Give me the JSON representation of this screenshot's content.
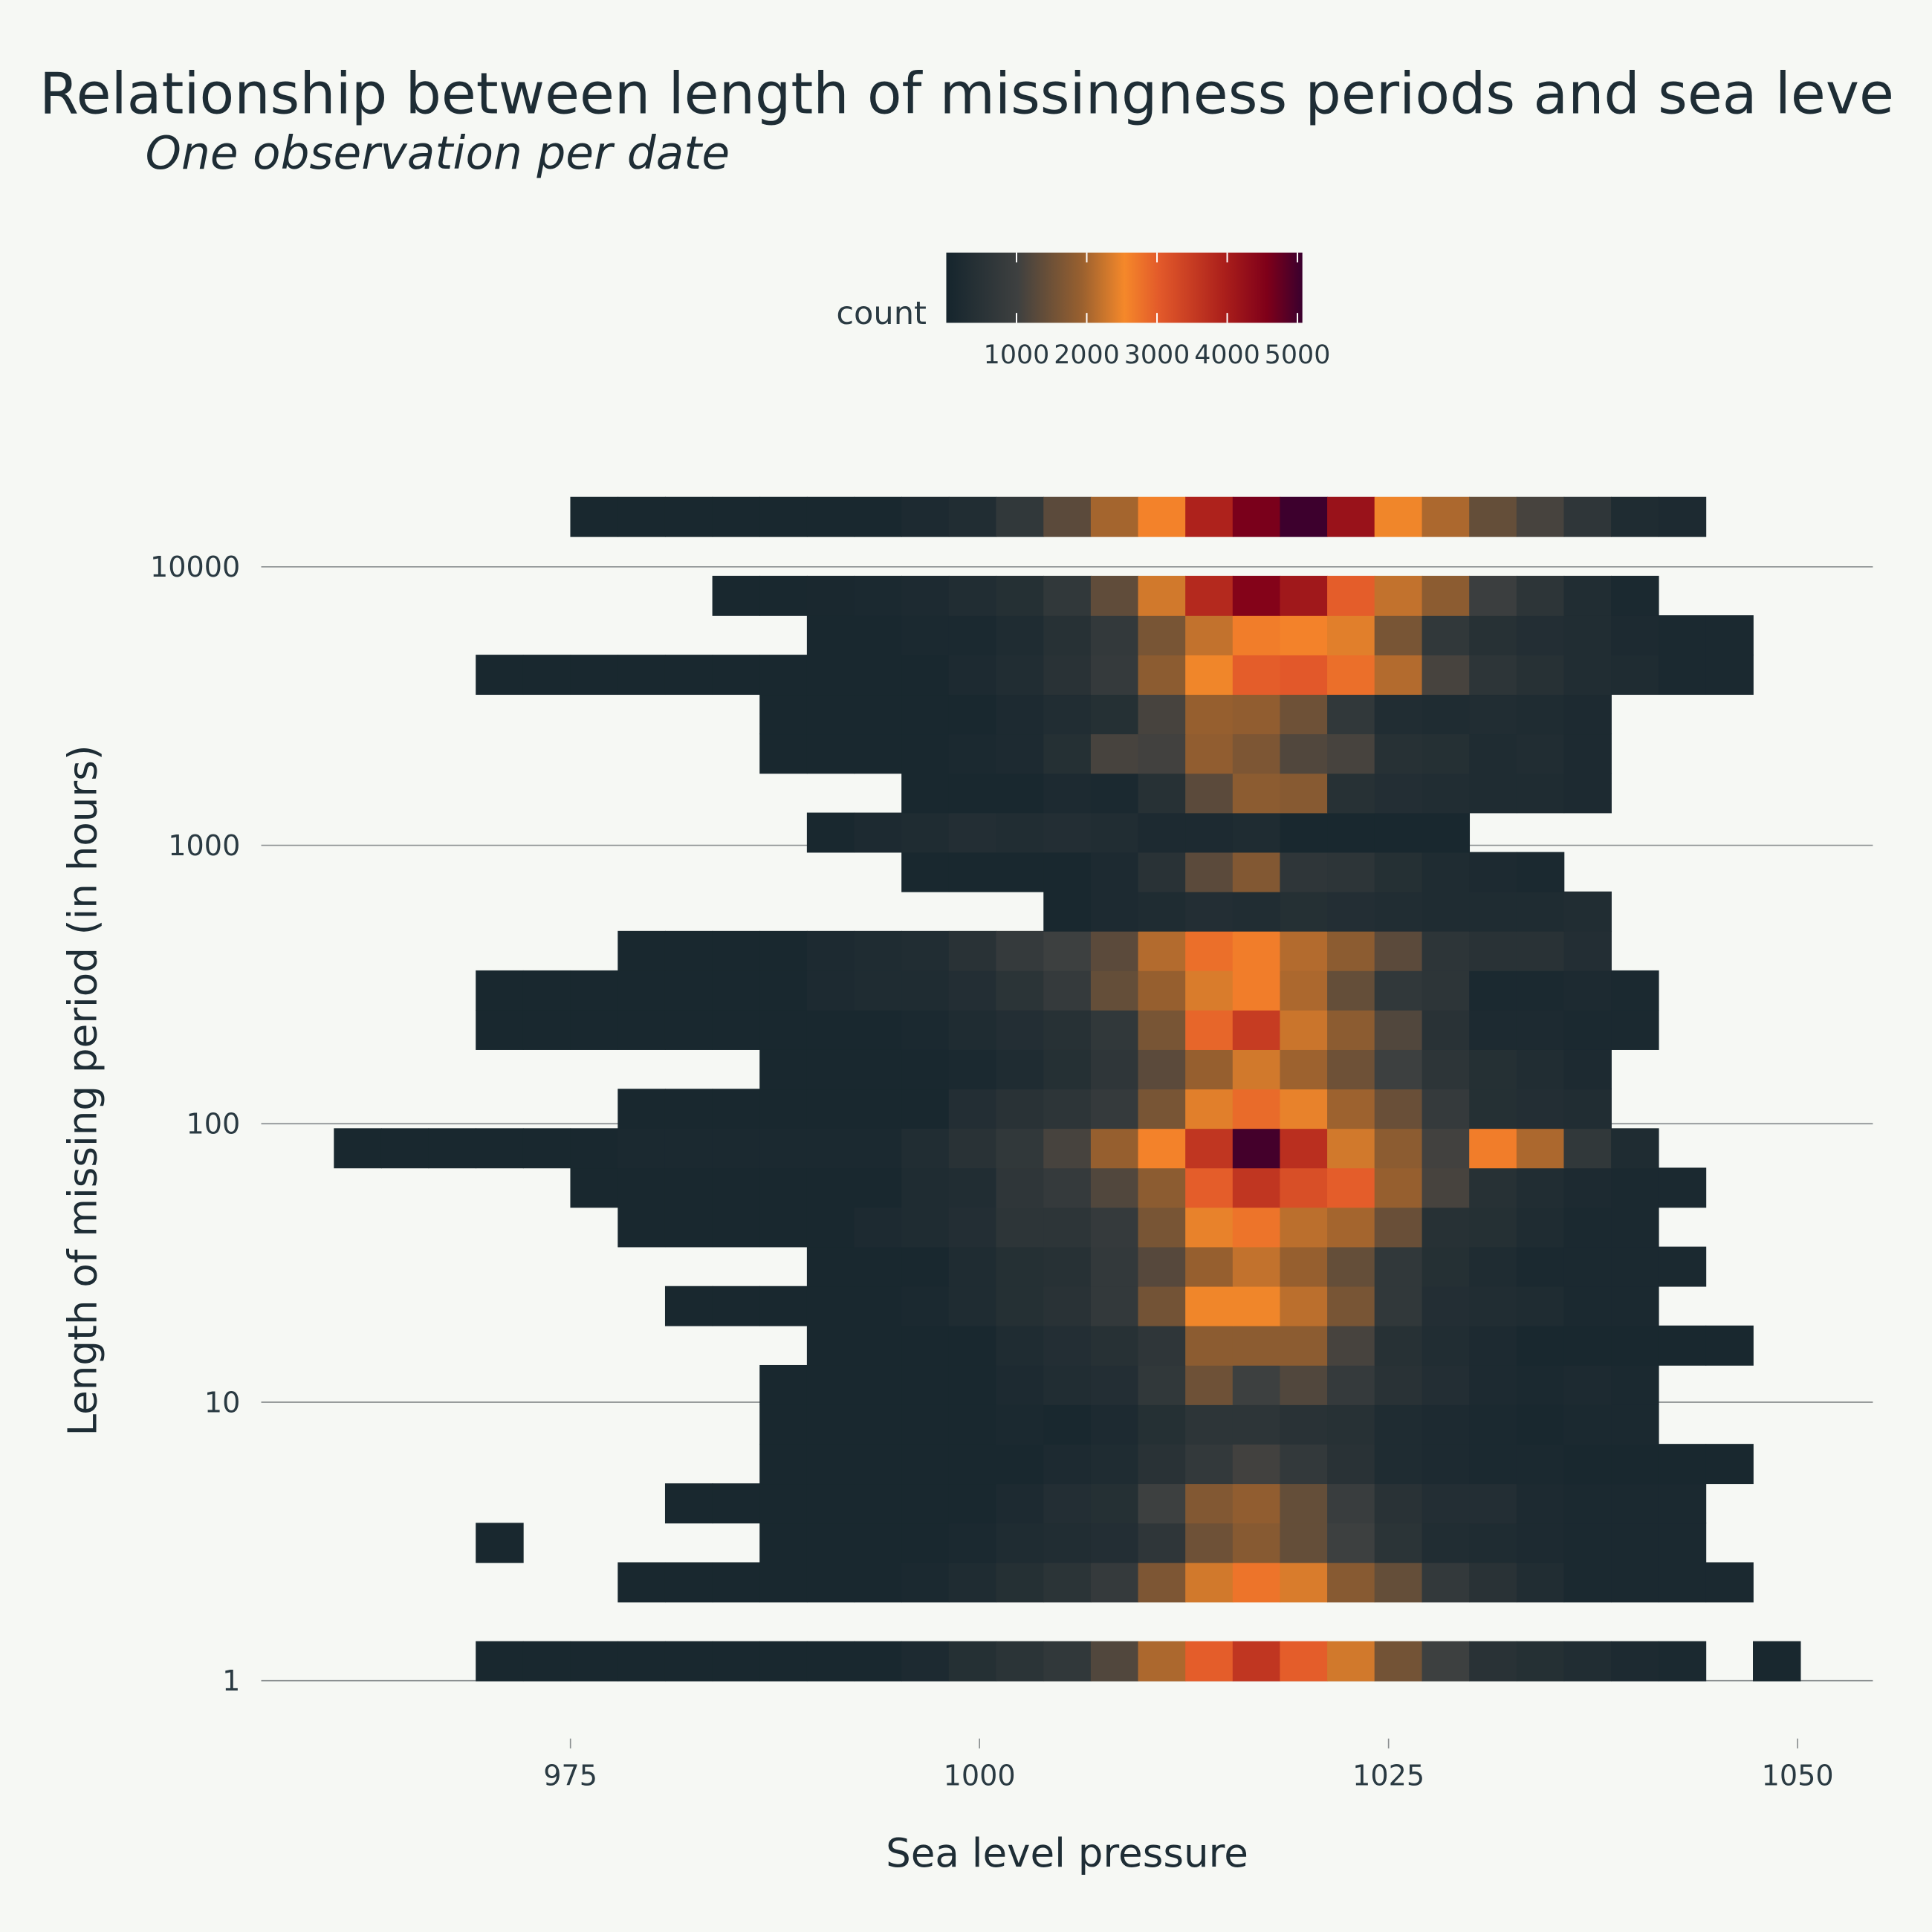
{
  "chart_data": {
    "type": "heatmap",
    "title": "Relationship between length of missingness periods and sea leve",
    "subtitle": "One observation per date",
    "x_label": "Sea level pressure",
    "y_label": "Length of missing period (in hours)",
    "xlim": [
      956.1,
      1054.6
    ],
    "xticks": [
      975,
      1000,
      1025,
      1050
    ],
    "ylim": [
      0.7293,
      23776
    ],
    "yticks": [
      1,
      10,
      100,
      1000,
      10000
    ],
    "ylog": true,
    "grid": true,
    "xbins": [
      960.54,
      963.43,
      966.32,
      969.21,
      972.1,
      974.99,
      977.89,
      980.78,
      983.67,
      986.56,
      989.45,
      992.34,
      995.23,
      998.12,
      1001.01,
      1003.91,
      1006.8,
      1009.69,
      1012.58,
      1015.47,
      1018.36,
      1021.25,
      1024.14,
      1027.04,
      1029.93,
      1032.82,
      1035.71,
      1038.6,
      1041.49,
      1044.38,
      1047.27,
      1050.16
    ],
    "ybins": [
      1,
      1.386,
      1.92,
      2.661,
      3.688,
      5.111,
      7.083,
      9.815,
      13.6,
      18.85,
      26.12,
      36.2,
      50.17,
      69.52,
      96.34,
      133.5,
      185.0,
      256.4,
      355.3,
      492.4,
      682.4,
      945.6,
      1310,
      1816,
      2517,
      3488,
      4833,
      6698,
      9282,
      12862,
      17824
    ],
    "zlim": [
      0,
      5070
    ],
    "colorbar": {
      "title": "count",
      "ticks": [
        1000,
        2000,
        3000,
        4000,
        5000
      ],
      "colorscale": [
        [
          0,
          "#15252d"
        ],
        [
          0.2,
          "#3e4040"
        ],
        [
          0.38,
          "#99602f"
        ],
        [
          0.5,
          "#f5882a"
        ],
        [
          0.6,
          "#e2592a"
        ],
        [
          0.78,
          "#ab1f1b"
        ],
        [
          0.9,
          "#7f0019"
        ],
        [
          1,
          "#3a002e"
        ]
      ]
    },
    "z": [
      [
        null,
        null,
        null,
        100,
        100,
        100,
        100,
        100,
        100,
        100,
        100,
        100,
        200,
        400,
        550,
        700,
        1200,
        2050,
        3000,
        3600,
        3000,
        2300,
        1550,
        1000,
        500,
        400,
        300,
        200,
        150,
        null,
        100
      ],
      [
        null,
        null,
        null,
        null,
        null,
        null,
        null,
        null,
        null,
        null,
        null,
        null,
        null,
        null,
        null,
        null,
        null,
        null,
        null,
        null,
        null,
        null,
        null,
        null,
        null,
        null,
        null,
        null,
        null,
        null,
        null
      ],
      [
        null,
        null,
        null,
        null,
        null,
        null,
        100,
        100,
        100,
        100,
        100,
        100,
        150,
        250,
        400,
        550,
        800,
        1650,
        2300,
        2750,
        2350,
        1750,
        1400,
        750,
        500,
        300,
        150,
        150,
        150,
        150,
        null
      ],
      [
        null,
        null,
        null,
        100,
        null,
        null,
        null,
        null,
        null,
        100,
        100,
        100,
        100,
        150,
        250,
        300,
        350,
        650,
        1500,
        1750,
        1400,
        1000,
        550,
        300,
        250,
        200,
        150,
        150,
        150,
        null,
        null
      ],
      [
        null,
        null,
        null,
        null,
        null,
        null,
        null,
        100,
        100,
        100,
        100,
        100,
        100,
        100,
        200,
        350,
        400,
        1000,
        1700,
        1850,
        1400,
        900,
        500,
        350,
        350,
        200,
        150,
        150,
        150,
        null,
        null
      ],
      [
        null,
        null,
        null,
        null,
        null,
        null,
        null,
        null,
        null,
        100,
        100,
        100,
        100,
        100,
        100,
        200,
        250,
        500,
        750,
        1050,
        750,
        500,
        250,
        200,
        150,
        150,
        100,
        100,
        100,
        100,
        null
      ],
      [
        null,
        null,
        null,
        null,
        null,
        null,
        null,
        null,
        null,
        100,
        100,
        100,
        100,
        100,
        150,
        100,
        200,
        400,
        600,
        600,
        500,
        450,
        250,
        200,
        150,
        100,
        150,
        150,
        null,
        null,
        null
      ],
      [
        null,
        null,
        null,
        null,
        null,
        null,
        null,
        null,
        null,
        100,
        100,
        100,
        100,
        100,
        200,
        300,
        350,
        700,
        1500,
        1000,
        1200,
        800,
        500,
        350,
        200,
        150,
        200,
        150,
        null,
        null,
        null
      ],
      [
        null,
        null,
        null,
        null,
        null,
        null,
        null,
        null,
        null,
        null,
        100,
        100,
        100,
        100,
        250,
        350,
        450,
        650,
        1800,
        1800,
        1800,
        1100,
        450,
        300,
        200,
        100,
        100,
        100,
        100,
        100,
        null
      ],
      [
        null,
        null,
        null,
        null,
        null,
        null,
        null,
        100,
        100,
        100,
        100,
        100,
        150,
        250,
        400,
        500,
        750,
        1550,
        2500,
        2500,
        2150,
        1600,
        700,
        350,
        300,
        250,
        150,
        150,
        null,
        null,
        null
      ],
      [
        null,
        null,
        null,
        null,
        null,
        null,
        null,
        null,
        null,
        null,
        100,
        100,
        100,
        250,
        400,
        450,
        750,
        1250,
        1900,
        2200,
        1900,
        1400,
        700,
        400,
        250,
        150,
        150,
        150,
        150,
        null,
        null
      ],
      [
        null,
        null,
        null,
        null,
        null,
        null,
        100,
        100,
        100,
        100,
        100,
        200,
        250,
        350,
        600,
        600,
        800,
        1600,
        2450,
        2750,
        2150,
        2000,
        1450,
        450,
        400,
        250,
        150,
        150,
        null,
        null,
        null
      ],
      [
        null,
        null,
        null,
        null,
        null,
        100,
        100,
        100,
        100,
        100,
        100,
        100,
        250,
        300,
        650,
        800,
        1200,
        1800,
        3000,
        3600,
        3200,
        3000,
        1900,
        1100,
        450,
        300,
        200,
        150,
        150,
        null,
        null
      ],
      [
        100,
        100,
        100,
        100,
        100,
        100,
        150,
        150,
        150,
        150,
        150,
        150,
        300,
        500,
        700,
        1100,
        1900,
        2600,
        3600,
        5000,
        3700,
        2300,
        1800,
        1050,
        2650,
        2050,
        700,
        250,
        null,
        null,
        null
      ],
      [
        null,
        null,
        null,
        null,
        null,
        null,
        100,
        100,
        100,
        100,
        100,
        100,
        100,
        350,
        500,
        600,
        800,
        1600,
        2400,
        2850,
        2450,
        1950,
        1450,
        800,
        400,
        350,
        300,
        null,
        null,
        null,
        null
      ],
      [
        null,
        null,
        null,
        null,
        null,
        null,
        null,
        null,
        null,
        100,
        100,
        100,
        100,
        150,
        250,
        400,
        650,
        1300,
        1900,
        2300,
        1950,
        1500,
        1000,
        600,
        400,
        300,
        200,
        null,
        null,
        null,
        null
      ],
      [
        null,
        null,
        null,
        100,
        100,
        100,
        100,
        100,
        100,
        100,
        100,
        100,
        150,
        250,
        350,
        450,
        700,
        1600,
        2900,
        3500,
        2250,
        1800,
        1200,
        500,
        200,
        200,
        150,
        150,
        null,
        null,
        null
      ],
      [
        null,
        null,
        null,
        100,
        100,
        100,
        100,
        100,
        100,
        100,
        200,
        250,
        250,
        350,
        550,
        800,
        1400,
        1900,
        2350,
        2650,
        2050,
        1400,
        700,
        600,
        150,
        150,
        200,
        150,
        null,
        null,
        null
      ],
      [
        null,
        null,
        null,
        null,
        null,
        null,
        100,
        100,
        100,
        100,
        200,
        250,
        300,
        500,
        800,
        1000,
        1300,
        2100,
        2800,
        2650,
        2100,
        1800,
        1300,
        600,
        500,
        500,
        350,
        null,
        null,
        null,
        null
      ],
      [
        null,
        null,
        null,
        null,
        null,
        null,
        null,
        null,
        null,
        null,
        null,
        null,
        null,
        null,
        null,
        100,
        200,
        250,
        350,
        300,
        400,
        350,
        300,
        250,
        250,
        250,
        300,
        null,
        null,
        null,
        null
      ],
      [
        null,
        null,
        null,
        null,
        null,
        null,
        null,
        null,
        null,
        null,
        null,
        null,
        100,
        100,
        100,
        100,
        200,
        500,
        1300,
        1700,
        650,
        600,
        400,
        250,
        200,
        150,
        null,
        null,
        null,
        null,
        null
      ],
      [
        null,
        null,
        null,
        null,
        null,
        null,
        null,
        null,
        null,
        null,
        100,
        200,
        250,
        350,
        300,
        350,
        300,
        200,
        200,
        250,
        100,
        100,
        100,
        100,
        null,
        null,
        null,
        null,
        null,
        null,
        null
      ],
      [
        null,
        null,
        null,
        null,
        null,
        null,
        null,
        null,
        null,
        null,
        null,
        null,
        100,
        100,
        100,
        200,
        150,
        450,
        1300,
        1800,
        1750,
        450,
        350,
        300,
        250,
        250,
        200,
        null,
        null,
        null,
        null
      ],
      [
        null,
        null,
        null,
        null,
        null,
        null,
        null,
        null,
        null,
        100,
        100,
        100,
        100,
        150,
        200,
        400,
        1100,
        1050,
        1850,
        1650,
        1200,
        1100,
        450,
        400,
        250,
        300,
        200,
        null,
        null,
        null,
        null
      ],
      [
        null,
        null,
        null,
        null,
        null,
        null,
        null,
        null,
        null,
        100,
        100,
        100,
        100,
        100,
        200,
        300,
        400,
        1100,
        1900,
        1850,
        1500,
        700,
        300,
        250,
        300,
        250,
        200,
        null,
        null,
        null,
        null
      ],
      [
        null,
        null,
        null,
        100,
        100,
        100,
        100,
        100,
        100,
        100,
        100,
        100,
        100,
        200,
        300,
        500,
        800,
        1800,
        2500,
        3000,
        3050,
        2800,
        2100,
        1100,
        600,
        450,
        300,
        250,
        150,
        150,
        null
      ],
      [
        null,
        null,
        null,
        null,
        null,
        null,
        null,
        null,
        null,
        null,
        100,
        100,
        150,
        150,
        250,
        450,
        750,
        1600,
        2200,
        2650,
        2600,
        2400,
        1600,
        700,
        450,
        350,
        300,
        200,
        150,
        150,
        null
      ],
      [
        null,
        null,
        null,
        null,
        null,
        null,
        null,
        null,
        100,
        100,
        120,
        150,
        200,
        300,
        400,
        700,
        1350,
        2300,
        3800,
        4500,
        4100,
        3000,
        2200,
        1800,
        950,
        600,
        300,
        150,
        null,
        null,
        null
      ],
      [
        null,
        null,
        null,
        null,
        null,
        null,
        null,
        null,
        null,
        null,
        null,
        null,
        null,
        null,
        null,
        null,
        null,
        null,
        null,
        null,
        null,
        null,
        null,
        null,
        null,
        null,
        null,
        null,
        null,
        null,
        null
      ],
      [
        null,
        null,
        null,
        null,
        null,
        100,
        100,
        100,
        100,
        100,
        100,
        100,
        200,
        300,
        700,
        1300,
        2000,
        2600,
        3900,
        4600,
        5050,
        4200,
        2500,
        2050,
        1400,
        1100,
        650,
        250,
        200,
        null,
        null
      ]
    ]
  }
}
